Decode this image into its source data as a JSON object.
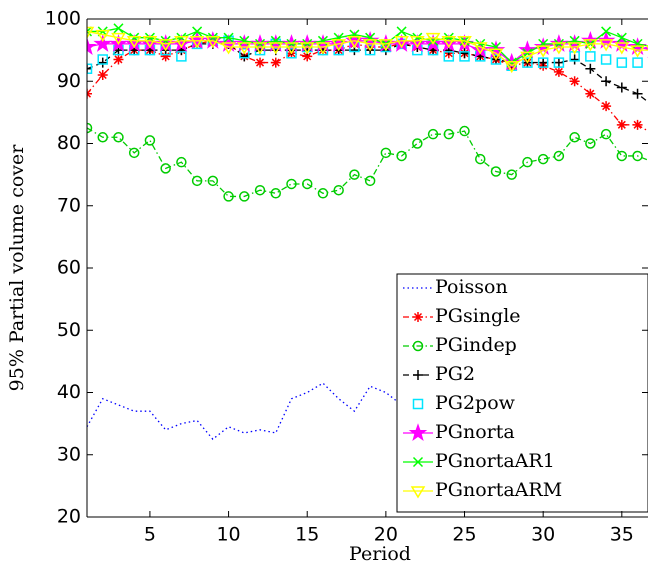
{
  "chart_data": {
    "type": "line",
    "xlabel": "Period",
    "ylabel": "95% Partial volume cover",
    "x": [
      1,
      2,
      3,
      4,
      5,
      6,
      7,
      8,
      9,
      10,
      11,
      12,
      13,
      14,
      15,
      16,
      17,
      18,
      19,
      20,
      21,
      22,
      23,
      24,
      25,
      26,
      27,
      28,
      29,
      30,
      31,
      32,
      33,
      34,
      35,
      36,
      37
    ],
    "xlim": [
      1,
      37
    ],
    "ylim": [
      20,
      100
    ],
    "xticks": [
      5,
      10,
      15,
      20,
      25,
      30,
      35
    ],
    "yticks": [
      20,
      30,
      40,
      50,
      60,
      70,
      80,
      90,
      100
    ],
    "legend": "lower right",
    "series": [
      {
        "name": "Poisson",
        "color": "#0000ff",
        "style": "dotted",
        "marker": "none",
        "values": [
          34.5,
          39,
          38,
          37,
          37,
          34,
          35,
          35.5,
          32.5,
          34.5,
          33.5,
          34,
          33.5,
          39,
          40,
          41.5,
          39,
          37,
          41,
          40,
          38,
          37,
          36,
          36,
          35,
          34,
          33,
          33,
          32,
          32,
          33,
          31,
          30,
          32.5,
          33,
          32,
          31
        ]
      },
      {
        "name": "PGsingle",
        "color": "#ff0000",
        "style": "dashdot",
        "marker": "asterisk",
        "values": [
          88,
          91,
          93.5,
          95,
          95,
          94,
          95,
          96,
          96.5,
          96,
          94,
          93,
          93,
          94.5,
          94,
          95,
          95,
          96,
          95.5,
          95.5,
          96,
          95.5,
          95,
          94.5,
          94.5,
          94,
          93.5,
          92.5,
          93,
          92.5,
          91.5,
          90,
          88,
          86,
          83,
          83,
          81.5
        ]
      },
      {
        "name": "PGindep",
        "color": "#00cc00",
        "style": "dashdot",
        "marker": "circle",
        "values": [
          82.5,
          81,
          81,
          78.5,
          80.5,
          76,
          77,
          74,
          74,
          71.5,
          71.5,
          72.5,
          72,
          73.5,
          73.5,
          72,
          72.5,
          75,
          74,
          78.5,
          78,
          80,
          81.5,
          81.5,
          82,
          77.5,
          75.5,
          75,
          77,
          77.5,
          78,
          81,
          80,
          81.5,
          78,
          78,
          77
        ]
      },
      {
        "name": "PG2",
        "color": "#000000",
        "style": "dashed",
        "marker": "plus",
        "values": [
          92,
          93,
          95,
          95,
          95,
          95,
          95,
          96,
          96,
          96,
          94,
          95,
          95,
          95,
          95,
          95,
          95,
          95,
          95,
          95,
          96,
          95.5,
          95,
          95,
          94.5,
          94,
          93.5,
          93,
          93,
          93,
          93,
          93.5,
          92,
          90,
          89,
          88,
          86
        ]
      },
      {
        "name": "PG2pow",
        "color": "#00e5ff",
        "style": "none",
        "marker": "square",
        "values": [
          92,
          93.5,
          95,
          95,
          95,
          95,
          94,
          96,
          96.5,
          96.5,
          94.5,
          95,
          96,
          94.5,
          95.5,
          95,
          95,
          95.5,
          95,
          95.5,
          96,
          95,
          95,
          94,
          94,
          94,
          93.5,
          92.5,
          93,
          93,
          93,
          94,
          94,
          93.5,
          93,
          93,
          90
        ]
      },
      {
        "name": "PGnorta",
        "color": "#ff00ff",
        "style": "solid",
        "marker": "star",
        "values": [
          95.5,
          96,
          96,
          96,
          96,
          96,
          96,
          96.5,
          96.5,
          96,
          96,
          96,
          96,
          96,
          96,
          96,
          96,
          96.5,
          96.5,
          96,
          96,
          96,
          96,
          96,
          96,
          95,
          95,
          93,
          95,
          95.5,
          96,
          96,
          96.5,
          96.5,
          96,
          95.5,
          95
        ]
      },
      {
        "name": "PGnortaAR1",
        "color": "#00ff00",
        "style": "solid",
        "marker": "x",
        "values": [
          98,
          98,
          98.5,
          97,
          97,
          96.5,
          97,
          98,
          97,
          97,
          96.5,
          96,
          96.5,
          96,
          96,
          96.5,
          97,
          97.5,
          97,
          96,
          98,
          97,
          96.5,
          97,
          96.5,
          96,
          95.5,
          93,
          94.5,
          96,
          96,
          96.5,
          96,
          98,
          97,
          96,
          95.5
        ]
      },
      {
        "name": "PGnortaARM",
        "color": "#ffff00",
        "style": "solid",
        "marker": "triangle-down",
        "values": [
          98,
          97.5,
          97,
          96.5,
          96.5,
          96,
          96.5,
          96.5,
          96.5,
          95.5,
          95.5,
          95.5,
          95.5,
          95.5,
          95.5,
          95.5,
          96,
          96.5,
          96,
          96,
          96.5,
          96.5,
          97,
          96.5,
          96.5,
          95.5,
          94.5,
          92.5,
          94,
          95,
          95.5,
          95.5,
          96,
          96,
          95.5,
          95,
          95
        ]
      }
    ]
  }
}
